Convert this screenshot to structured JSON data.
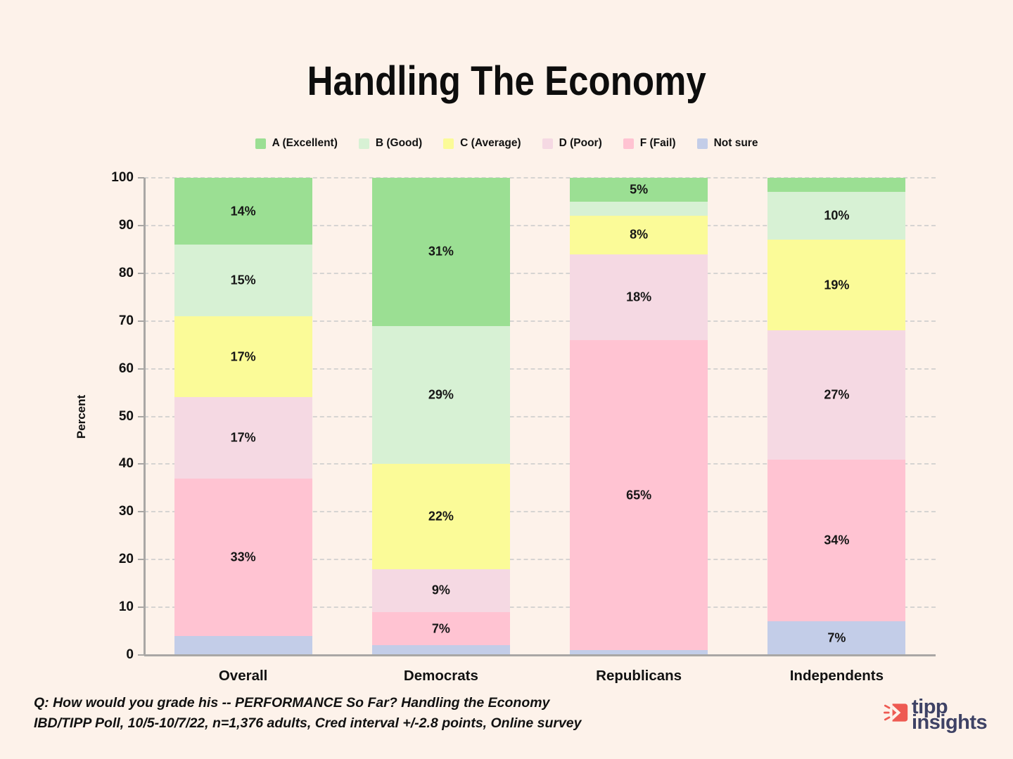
{
  "title": "Handling The Economy",
  "footer": {
    "line1": "Q:  How would you grade his -- PERFORMANCE So Far? Handling the Economy",
    "line2": "IBD/TIPP Poll, 10/5-10/7/22, n=1,376 adults, Cred interval +/-2.8 points, Online survey"
  },
  "logo": {
    "word1": "tipp",
    "word2": "insights",
    "navy": "#3E4265",
    "coral": "#EE5A52"
  },
  "colors": {
    "background": "#FDF2EA",
    "axis": "#A9A7A5",
    "gridline": "#D6D4D2",
    "text": "#111111"
  },
  "chart_data": {
    "type": "bar",
    "subtype": "stacked-vertical",
    "title": "Handling The Economy",
    "xlabel": "",
    "ylabel": "Percent",
    "ylim": [
      0,
      100
    ],
    "yticks": [
      0,
      10,
      20,
      30,
      40,
      50,
      60,
      70,
      80,
      90,
      100
    ],
    "grid": "dashed-horizontal",
    "legend_position": "top-center",
    "label_rule": "segment labels shown as value% when value >= 5",
    "categories": [
      "Overall",
      "Democrats",
      "Republicans",
      "Independents"
    ],
    "stack_order_bottom_to_top": [
      "Not sure",
      "F (Fail)",
      "D (Poor)",
      "C (Average)",
      "B (Good)",
      "A (Excellent)"
    ],
    "series": [
      {
        "name": "A (Excellent)",
        "color": "#9BDF93",
        "values": [
          14,
          31,
          5,
          3
        ]
      },
      {
        "name": "B (Good)",
        "color": "#D7F1D4",
        "values": [
          15,
          29,
          3,
          10
        ]
      },
      {
        "name": "C (Average)",
        "color": "#FBFB98",
        "values": [
          17,
          22,
          8,
          19
        ]
      },
      {
        "name": "D (Poor)",
        "color": "#F5D9E3",
        "values": [
          17,
          9,
          18,
          27
        ]
      },
      {
        "name": "F (Fail)",
        "color": "#FFC3D2",
        "values": [
          33,
          7,
          65,
          34
        ]
      },
      {
        "name": "Not sure",
        "color": "#C3CDE8",
        "values": [
          4,
          2,
          1,
          7
        ]
      }
    ]
  }
}
